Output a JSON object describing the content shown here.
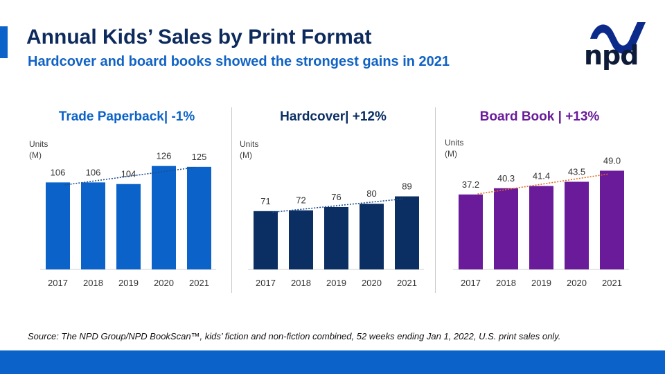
{
  "header": {
    "title": "Annual Kids’ Sales by Print Format",
    "subtitle": "Hardcover and board books showed the strongest gains in 2021"
  },
  "logo": {
    "text": "npd",
    "icon": "npd-swoosh-icon",
    "color": "#0b2a8a"
  },
  "colors": {
    "trade_paperback": "#0b62c8",
    "hardcover": "#0b2f63",
    "board_book": "#6a1b9a",
    "accent": "#0b62c8"
  },
  "units_label": {
    "line1": "Units",
    "line2": "(M)"
  },
  "chart_data": [
    {
      "type": "bar",
      "title": "Trade Paperback| -1%",
      "categories": [
        "2017",
        "2018",
        "2019",
        "2020",
        "2021"
      ],
      "series": [
        {
          "values": [
            106,
            106,
            104,
            126,
            125
          ]
        }
      ],
      "value_labels": [
        "106",
        "106",
        "104",
        "126",
        "125"
      ],
      "ylabel": "Units (M)",
      "trendline": true,
      "ylim": [
        0,
        135
      ]
    },
    {
      "type": "bar",
      "title": "Hardcover| +12%",
      "categories": [
        "2017",
        "2018",
        "2019",
        "2020",
        "2021"
      ],
      "series": [
        {
          "values": [
            71,
            72,
            76,
            80,
            89
          ]
        }
      ],
      "value_labels": [
        "71",
        "72",
        "76",
        "80",
        "89"
      ],
      "ylabel": "Units (M)",
      "trendline": true,
      "ylim": [
        0,
        135
      ]
    },
    {
      "type": "bar",
      "title": "Board Book | +13%",
      "categories": [
        "2017",
        "2018",
        "2019",
        "2020",
        "2021"
      ],
      "series": [
        {
          "values": [
            37.2,
            40.3,
            41.4,
            43.5,
            49.0
          ]
        }
      ],
      "value_labels": [
        "37.2",
        "40.3",
        "41.4",
        "43.5",
        "49.0"
      ],
      "ylabel": "Units (M)",
      "trendline": true,
      "ylim": [
        0,
        55
      ]
    }
  ],
  "footer": {
    "source": "Source: The NPD Group/NPD BookScan™, kids’ fiction and non-fiction combined, 52 weeks ending Jan 1, 2022, U.S. print sales only."
  }
}
